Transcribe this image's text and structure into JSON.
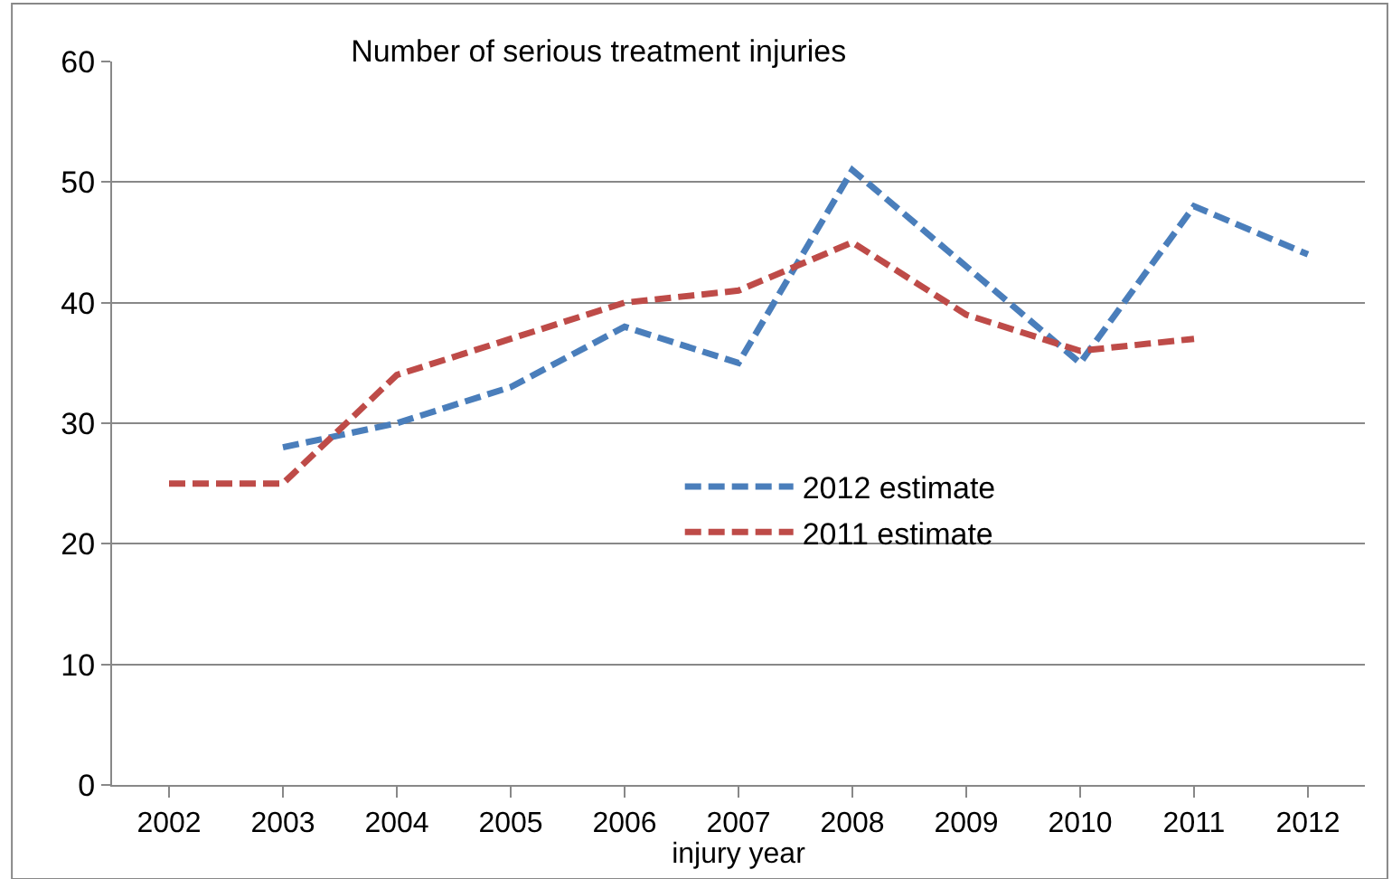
{
  "chart_data": {
    "type": "line",
    "title": "Number of serious treatment injuries",
    "xlabel": "injury year",
    "categories": [
      "2002",
      "2003",
      "2004",
      "2005",
      "2006",
      "2007",
      "2008",
      "2009",
      "2010",
      "2011",
      "2012"
    ],
    "series": [
      {
        "name": "2012 estimate",
        "color": "#4a7ebb",
        "line_style": "dashed",
        "values": [
          null,
          28,
          30,
          33,
          38,
          35,
          51,
          43,
          35,
          48,
          44
        ]
      },
      {
        "name": "2011 estimate",
        "color": "#be4b48",
        "line_style": "dashed",
        "values": [
          25,
          25,
          34,
          37,
          40,
          41,
          45,
          39,
          36,
          37,
          null
        ]
      }
    ],
    "ylim": [
      0,
      60
    ],
    "yticks": [
      0,
      10,
      20,
      30,
      40,
      50,
      60
    ],
    "grid": "y",
    "legend": "center",
    "marker": "none"
  }
}
